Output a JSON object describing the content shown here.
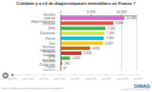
{
  "chart_data": {
    "type": "bar",
    "orientation": "horizontal",
    "title": "Combien y a t-il de diagnostiqueurs immobiliers en France ?",
    "categories": [
      "Plomb mention",
      "Termites Outre-mer",
      "DPE mention",
      "Amiante mention",
      "Termites métropole",
      "Gaz",
      "Plomb",
      "Electricité",
      "DPE",
      "Amiante",
      "Nombre total de diagnostiqueurs"
    ],
    "values": [
      67,
      242,
      1520,
      3415,
      4832,
      6937,
      7063,
      7164,
      7331,
      8666,
      10465
    ],
    "value_labels": [
      "67",
      "242",
      "1,520",
      "3,415",
      "4,832",
      "6,937",
      "7,063",
      "7,164",
      "7,331",
      "8,666",
      "10,465"
    ],
    "data_labels": true,
    "colors": [
      "#f5a623",
      "#e8572a",
      "#4caf50",
      "#c0392b",
      "#b5651d",
      "#f5c518",
      "#00bcd4",
      "#d4e157",
      "#4caf50",
      "#e74c3c",
      "#d966cc"
    ],
    "xlim": [
      0,
      12500
    ],
    "xticks": [
      0,
      {
        "value": 5000,
        "label": "5,000"
      },
      {
        "value": 10000,
        "label": "10,000"
      }
    ],
    "grid": true,
    "annotations": {
      "source": "Source: Annuaire des diagnostiqueurs immobiliers",
      "logo": "DiMAG",
      "tagline": "le registre de la gestion de bien",
      "timeline": [
        "juin 2019",
        "janvier 2020",
        "juin 2020",
        "janvier 2021",
        "juin 2021",
        "janvier 2022",
        "juin 2022",
        "janvier 2023",
        "juin 2023"
      ]
    }
  }
}
